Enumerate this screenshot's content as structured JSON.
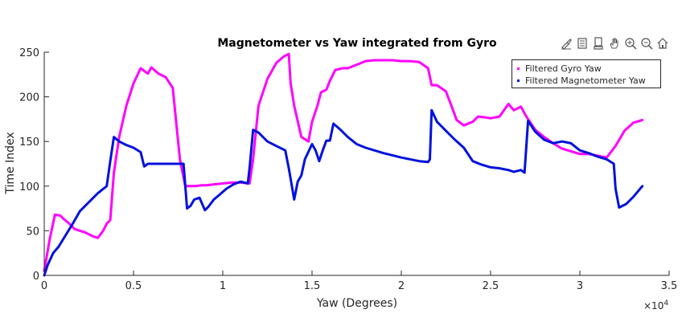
{
  "chart_data": {
    "type": "line",
    "title": "Magnetometer vs Yaw integrated from Gyro",
    "xlabel": "Yaw (Degrees)",
    "ylabel": "Time Index",
    "x_exponent_label": "×10",
    "x_exponent_power": "4",
    "xlim": [
      0,
      35000
    ],
    "ylim": [
      0,
      250
    ],
    "x_ticks": [
      0,
      5000,
      10000,
      15000,
      20000,
      25000,
      30000,
      35000
    ],
    "x_tick_labels": [
      "0",
      "0.5",
      "1",
      "1.5",
      "2",
      "2.5",
      "3",
      "3.5"
    ],
    "y_ticks": [
      0,
      50,
      100,
      150,
      200,
      250
    ],
    "y_tick_labels": [
      "0",
      "50",
      "100",
      "150",
      "200",
      "250"
    ],
    "grid": false,
    "legend_position": "top-right",
    "series": [
      {
        "name": "Filtered Gyro Yaw",
        "color": "#ff00ff",
        "x": [
          0,
          300,
          600,
          900,
          1100,
          1400,
          1700,
          2000,
          2300,
          2700,
          3000,
          3300,
          3500,
          3700,
          3900,
          4200,
          4600,
          5000,
          5400,
          5800,
          6000,
          6400,
          6800,
          7200,
          7600,
          7900,
          8200,
          8500,
          8800,
          9100,
          9500,
          10000,
          10500,
          11000,
          11500,
          11700,
          12000,
          12500,
          13000,
          13400,
          13700,
          13800,
          14000,
          14400,
          14800,
          15000,
          15300,
          15500,
          15800,
          16000,
          16300,
          16700,
          17000,
          17500,
          18000,
          18500,
          19000,
          19500,
          20000,
          20500,
          21000,
          21500,
          21700,
          22000,
          22500,
          22900,
          23100,
          23500,
          24000,
          24300,
          24700,
          25000,
          25500,
          26000,
          26300,
          26700,
          27000,
          27200,
          27500,
          28000,
          28500,
          29000,
          29500,
          30000,
          30500,
          31000,
          31500,
          32000,
          32500,
          33000,
          33500
        ],
        "values": [
          5,
          40,
          68,
          67,
          63,
          58,
          52,
          50,
          48,
          44,
          42,
          50,
          58,
          62,
          115,
          155,
          190,
          215,
          232,
          226,
          233,
          226,
          222,
          210,
          130,
          100,
          100,
          100,
          101,
          101,
          102,
          103,
          104,
          104,
          103,
          130,
          190,
          220,
          238,
          245,
          248,
          215,
          190,
          155,
          150,
          172,
          190,
          205,
          208,
          218,
          230,
          232,
          232,
          236,
          240,
          241,
          241,
          241,
          240,
          240,
          239,
          232,
          213,
          213,
          206,
          185,
          174,
          168,
          172,
          178,
          177,
          176,
          178,
          192,
          185,
          189,
          178,
          172,
          163,
          155,
          148,
          142,
          139,
          136,
          136,
          134,
          132,
          145,
          162,
          171,
          174
        ]
      },
      {
        "name": "Filtered Magnetometer Yaw",
        "color": "#0011dd",
        "x": [
          0,
          200,
          500,
          800,
          1200,
          1600,
          2000,
          2500,
          3000,
          3500,
          3700,
          3900,
          4200,
          4600,
          5000,
          5400,
          5600,
          5800,
          6500,
          7200,
          7800,
          8000,
          8200,
          8400,
          8700,
          9000,
          9200,
          9500,
          9800,
          10200,
          10600,
          11000,
          11400,
          11500,
          11700,
          12000,
          12500,
          13000,
          13500,
          13700,
          14000,
          14200,
          14400,
          14600,
          15000,
          15200,
          15400,
          15600,
          15800,
          16000,
          16200,
          16600,
          17000,
          17500,
          18000,
          19000,
          20000,
          21000,
          21500,
          21600,
          21700,
          22000,
          22500,
          23000,
          23500,
          24000,
          24500,
          25000,
          25500,
          26000,
          26300,
          26700,
          26900,
          27100,
          27500,
          28000,
          28500,
          29000,
          29500,
          30000,
          30500,
          31000,
          31500,
          31900,
          32000,
          32200,
          32600,
          33000,
          33500
        ],
        "values": [
          0,
          12,
          25,
          32,
          45,
          58,
          72,
          82,
          92,
          100,
          128,
          155,
          150,
          146,
          143,
          138,
          122,
          125,
          125,
          125,
          125,
          75,
          78,
          85,
          87,
          73,
          77,
          85,
          90,
          97,
          102,
          105,
          103,
          120,
          163,
          160,
          150,
          145,
          140,
          120,
          85,
          105,
          112,
          130,
          147,
          140,
          128,
          140,
          151,
          151,
          170,
          163,
          155,
          147,
          143,
          137,
          132,
          128,
          127,
          130,
          185,
          172,
          162,
          152,
          143,
          128,
          124,
          121,
          120,
          118,
          116,
          118,
          115,
          173,
          161,
          152,
          148,
          150,
          148,
          140,
          137,
          133,
          130,
          125,
          97,
          76,
          80,
          88,
          100
        ]
      }
    ]
  },
  "toolbar": {
    "icons": [
      "brush-icon",
      "data-tips-icon",
      "export-icon",
      "pan-hand-icon",
      "zoom-in-icon",
      "zoom-out-icon",
      "home-icon"
    ]
  }
}
